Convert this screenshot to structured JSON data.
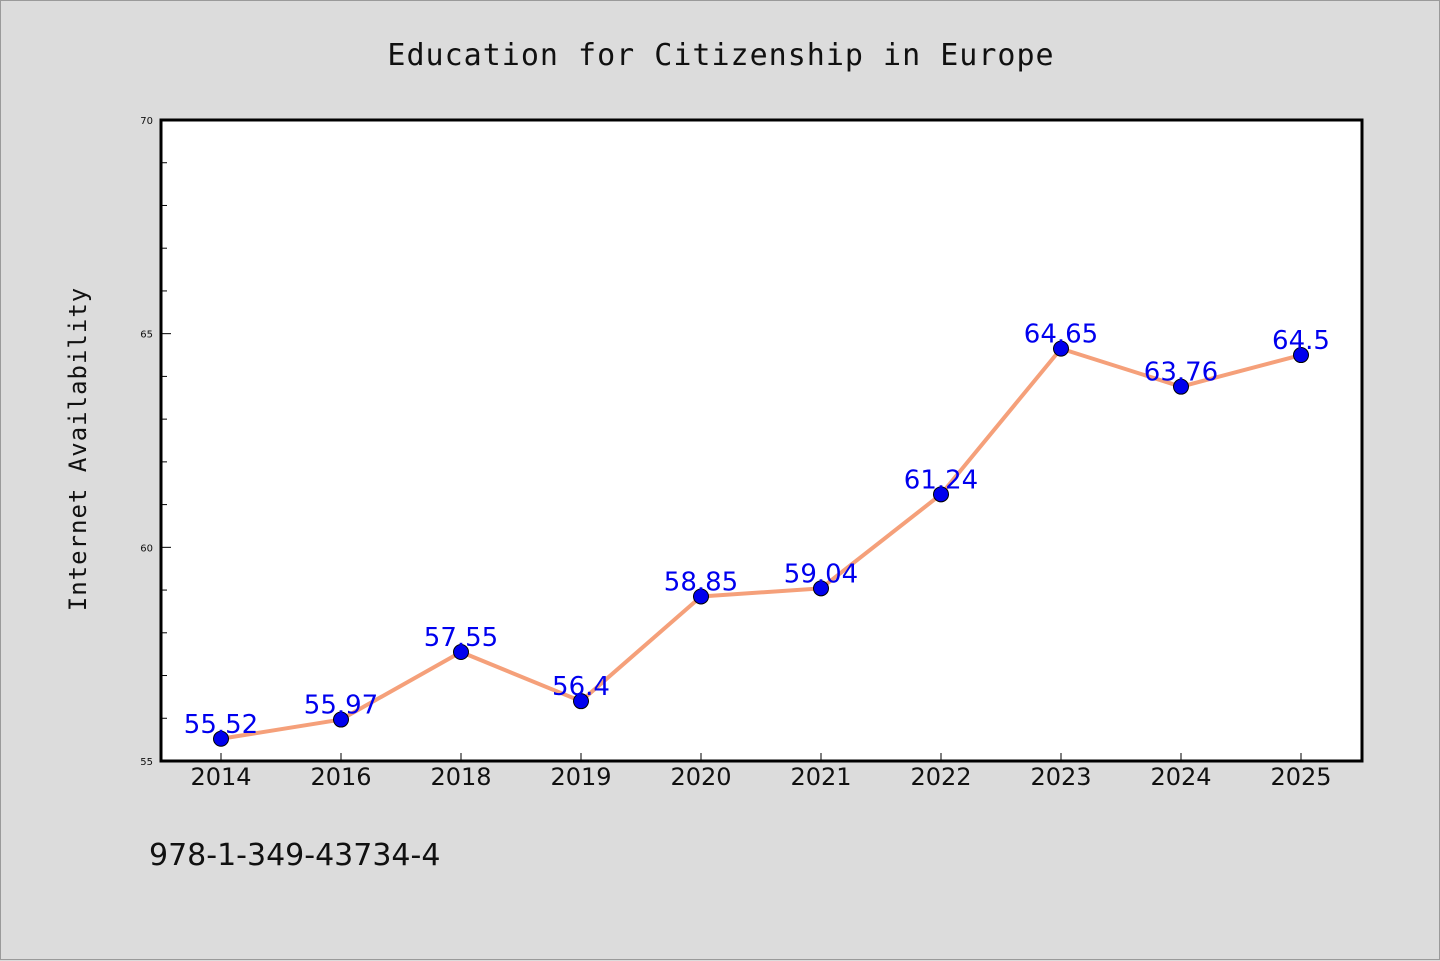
{
  "chart_data": {
    "type": "line",
    "title": "Education for Citizenship in Europe",
    "xlabel": "",
    "ylabel": "Internet Availability",
    "categories": [
      "2014",
      "2016",
      "2018",
      "2019",
      "2020",
      "2021",
      "2022",
      "2023",
      "2024",
      "2025"
    ],
    "series": [
      {
        "values": [
          55.52,
          55.97,
          57.55,
          56.4,
          58.85,
          59.04,
          61.24,
          64.65,
          63.76,
          64.5
        ],
        "data_labels": [
          "55.52",
          "55.97",
          "57.55",
          "56.4",
          "58.85",
          "59.04",
          "61.24",
          "64.65",
          "63.76",
          "64.5"
        ],
        "line_color": "#f5a07a",
        "marker_color": "#0000ee"
      }
    ],
    "ylim": [
      55,
      70
    ],
    "yticks": [
      "55",
      "60",
      "65",
      "70"
    ],
    "grid": false,
    "legend": "none"
  },
  "footer": {
    "isbn": "978-1-349-43734-4"
  }
}
